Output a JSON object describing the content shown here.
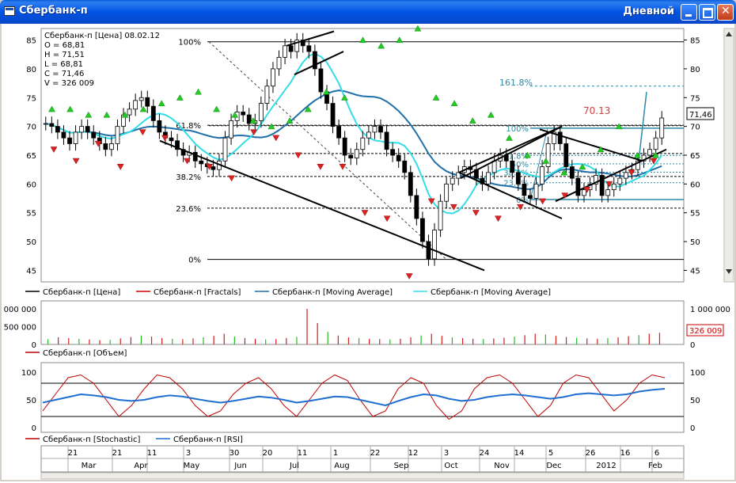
{
  "window": {
    "title": "Сбербанк-п",
    "period": "Дневной"
  },
  "info_box": {
    "header": "Сбербанк-п [Цена] 08.02.12",
    "open": "O = 68,81",
    "high": "H = 71,51",
    "low": "L = 68,81",
    "close": "C = 71,46",
    "volume": "V = 326 009"
  },
  "price_axis": {
    "ticks": [
      "85",
      "80",
      "75",
      "70",
      "65",
      "60",
      "55",
      "50",
      "45"
    ],
    "last_price_label": "71,46"
  },
  "fibonacci_left": [
    "100%",
    "61.8%",
    "38.2%",
    "23.6%",
    "0%"
  ],
  "fibonacci_right": [
    "100%",
    "61.8%",
    "50%",
    "38.2%",
    "23.6%",
    "0%"
  ],
  "fib_ext_label": "161.8%",
  "target_label": "70.13",
  "legend_price": [
    {
      "name": "Сбербанк-п [Цена]",
      "color": "#000000"
    },
    {
      "name": "Сбербанк-п [Fractals]",
      "color": "#d40000"
    },
    {
      "name": "Сбербанк-п [Moving Average]",
      "color": "#1f6fa8"
    },
    {
      "name": "Сбербанк-п [Moving Average]",
      "color": "#33dde8"
    }
  ],
  "volume_axis": {
    "left": [
      "000 000",
      "500 000",
      "0"
    ],
    "right": [
      "1 000 000",
      "500 000",
      "0"
    ],
    "last_label": "326 009"
  },
  "legend_volume": {
    "name": "Сбербанк-п [Объем]",
    "color": "#c00000"
  },
  "osc_axis": {
    "left": [
      "100",
      "50",
      "0"
    ],
    "right": [
      "100",
      "50",
      "0"
    ]
  },
  "legend_osc": [
    {
      "name": "Сбербанк-п [Stochastic]",
      "color": "#c00000"
    },
    {
      "name": "Сбербанк-п [RSI]",
      "color": "#1f6fd0"
    }
  ],
  "time_axis": {
    "days": [
      "21",
      "21",
      "11",
      "3",
      "30",
      "20",
      "11",
      "1",
      "22",
      "12",
      "3",
      "24",
      "14",
      "5",
      "26",
      "16",
      "6"
    ],
    "months": [
      "Mar",
      "Apr",
      "May",
      "Jun",
      "Jul",
      "Aug",
      "Sep",
      "Oct",
      "Nov",
      "Dec",
      "2012",
      "Feb"
    ]
  },
  "chart_data": {
    "type": "line",
    "instrument": "Сбербанк-п",
    "x_range": [
      "2011-03",
      "2012-02-08"
    ],
    "ylim": [
      43,
      87
    ],
    "yticks": [
      45,
      50,
      55,
      60,
      65,
      70,
      75,
      80,
      85
    ],
    "last": {
      "date": "08.02.12",
      "open": 68.81,
      "high": 71.51,
      "low": 68.81,
      "close": 71.46,
      "volume": 326009
    },
    "close_approx": [
      70.5,
      70,
      69,
      68,
      67,
      69,
      70,
      69,
      68,
      67,
      66,
      67,
      70,
      72,
      73,
      74.5,
      75,
      73.5,
      71,
      69,
      68,
      67.5,
      66,
      65,
      65.5,
      64,
      63.5,
      63,
      62.5,
      64,
      68,
      71,
      72.5,
      72,
      70.5,
      71,
      74,
      77,
      80,
      82,
      84,
      83,
      85,
      84,
      83,
      80,
      76,
      74,
      70,
      68,
      65,
      64.5,
      66,
      68,
      69,
      70,
      69,
      66,
      65,
      64,
      62,
      58,
      54,
      50,
      47,
      52,
      57,
      60,
      61,
      62,
      63,
      62.5,
      61,
      60,
      62,
      64,
      65,
      64,
      62,
      60,
      58,
      57.5,
      60,
      63,
      67,
      69,
      67,
      63,
      61,
      58,
      59,
      60,
      61.5,
      58,
      59,
      60,
      61,
      62,
      62.5,
      64,
      65,
      66,
      68,
      71.46
    ],
    "fractals_up_approx": [
      72,
      72,
      71,
      71,
      71,
      72,
      73,
      74,
      75,
      72,
      71,
      70,
      69,
      70,
      72,
      75,
      74,
      84,
      83,
      84,
      86,
      74,
      73,
      70,
      71,
      67,
      64,
      63,
      61,
      62,
      65,
      69,
      64,
      64
    ],
    "fractals_down_approx": [
      67,
      65,
      68,
      64,
      70,
      69,
      65,
      64,
      62,
      70,
      69,
      66,
      64,
      64,
      56,
      55,
      45,
      58,
      57,
      56,
      55,
      57,
      58,
      59,
      60,
      61,
      63,
      65
    ],
    "fibonacci_levels_left": {
      "100%": 84.7,
      "61.8%": 70.2,
      "38.2%": 61.3,
      "23.6%": 55.8,
      "0%": 46.9
    },
    "fibonacci_levels_right": {
      "161.8%": 77.0,
      "100%": 69.7,
      "0%": 57.3
    },
    "target": 70.13,
    "volume_approx": [
      150000,
      200000,
      180000,
      160000,
      140000,
      120000,
      130000,
      170000,
      210000,
      250000,
      220000,
      180000,
      160000,
      150000,
      170000,
      200000,
      240000,
      300000,
      220000,
      180000,
      160000,
      140000,
      150000,
      180000,
      210000,
      1000000,
      600000,
      350000,
      250000,
      200000,
      180000,
      160000,
      150000,
      140000,
      160000,
      200000,
      250000,
      300000,
      240000,
      200000,
      180000,
      160000,
      150000,
      170000,
      190000,
      220000,
      260000,
      300000,
      280000,
      240000,
      210000,
      190000,
      170000,
      160000,
      180000,
      200000,
      230000,
      260000,
      300000,
      326009
    ],
    "stochastic_approx": [
      30,
      60,
      90,
      95,
      80,
      50,
      20,
      40,
      70,
      95,
      90,
      70,
      40,
      20,
      30,
      60,
      80,
      90,
      70,
      40,
      20,
      50,
      80,
      95,
      85,
      50,
      20,
      30,
      70,
      90,
      80,
      40,
      15,
      30,
      70,
      90,
      95,
      80,
      50,
      20,
      40,
      80,
      95,
      90,
      60,
      30,
      50,
      80,
      95,
      90
    ],
    "rsi_approx": [
      45,
      50,
      55,
      60,
      58,
      55,
      50,
      48,
      50,
      55,
      58,
      56,
      52,
      48,
      45,
      48,
      52,
      56,
      54,
      50,
      45,
      48,
      52,
      56,
      55,
      50,
      45,
      40,
      48,
      55,
      60,
      58,
      52,
      48,
      50,
      55,
      58,
      60,
      58,
      55,
      52,
      55,
      60,
      62,
      60,
      58,
      60,
      65,
      68,
      70
    ]
  }
}
